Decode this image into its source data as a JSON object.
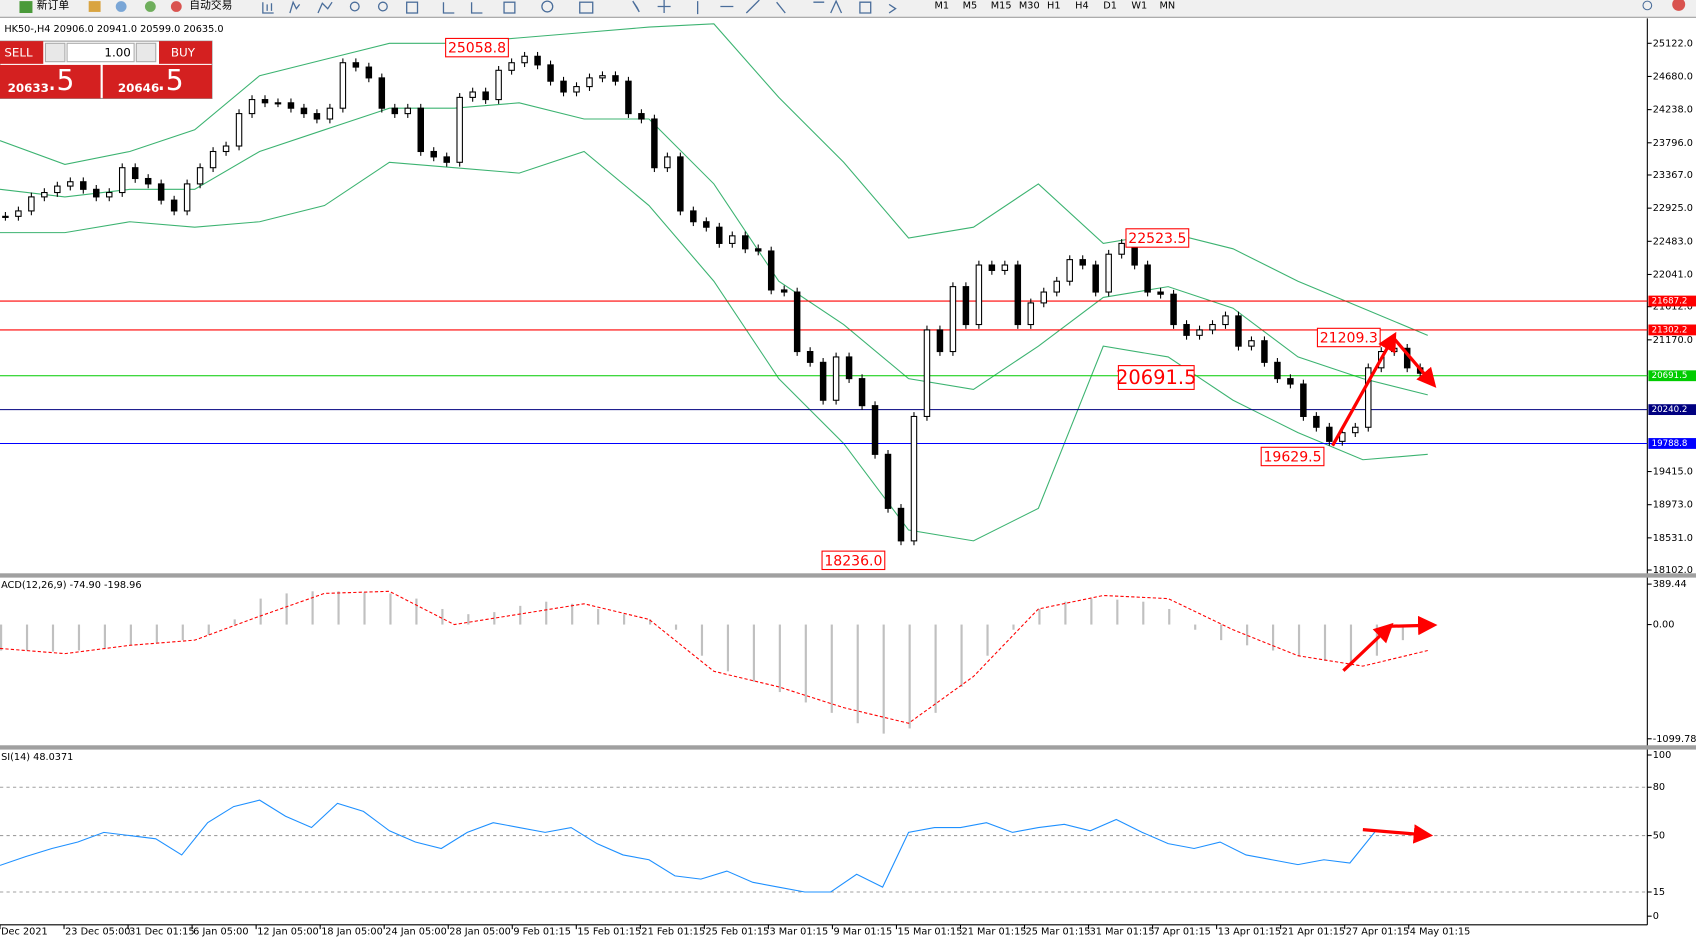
{
  "toolbar": {
    "new_order": "新订单",
    "auto_trading": "自动交易",
    "timeframes": [
      "M1",
      "M5",
      "M15",
      "M30",
      "H1",
      "H4",
      "D1",
      "W1",
      "MN"
    ]
  },
  "trade_panel": {
    "sell": "SELL",
    "buy": "BUY",
    "volume": "1.00",
    "bid_main": "20633",
    "bid_frac": ".5",
    "ask_main": "20646",
    "ask_frac": ".5"
  },
  "chart_data": [
    {
      "type": "candlestick",
      "title": "HK50-,H4  20906.0 20941.0 20599.0 20635.0",
      "color": "#000000",
      "values": [
        22816,
        22888,
        23075,
        23133,
        23219,
        23277,
        23176,
        23075,
        23133,
        23464,
        23320,
        23248,
        23032,
        22888,
        23248,
        23464,
        23680,
        23753,
        24185,
        24372,
        24329,
        24329,
        24257,
        24185,
        24113,
        24257,
        24863,
        24805,
        24661,
        24257,
        24185,
        24257,
        23680,
        23608,
        23536,
        24401,
        24473,
        24372,
        24762,
        24863,
        24949,
        24834,
        24617,
        24473,
        24545,
        24661,
        24690,
        24617,
        24185,
        24113,
        23464,
        23608,
        22888,
        22744,
        22671,
        22455,
        22556,
        22383,
        22354,
        21835,
        21807,
        21014,
        20870,
        20365,
        20942,
        20653,
        20293,
        19644,
        18924,
        18491,
        20149,
        21302,
        21014,
        21879,
        21374,
        22167,
        22095,
        22167,
        21374,
        21662,
        21807,
        21951,
        22239,
        22167,
        21807,
        22311,
        22455,
        22167,
        21807,
        21778,
        21374,
        21230,
        21302,
        21374,
        21489,
        21086,
        21158,
        20870,
        20653,
        20581,
        20149,
        20005,
        19817,
        19933,
        20005,
        20797,
        21014,
        21057,
        20797,
        20725
      ],
      "bands": [
        {
          "color": "#3cb371",
          "values": [
            23825,
            23508,
            23680,
            23969,
            24690,
            24906,
            25122,
            25122,
            25194,
            25266,
            25338,
            25381,
            24401,
            23536,
            22527,
            22671,
            23248,
            22455,
            22599,
            22383,
            21951,
            21591,
            21230
          ]
        },
        {
          "color": "#3cb371",
          "values": [
            23176,
            23075,
            23176,
            23176,
            23680,
            23969,
            24257,
            24257,
            24329,
            24113,
            24113,
            23248,
            21951,
            21374,
            20653,
            20509,
            21086,
            21735,
            21879,
            21591,
            20942,
            20653,
            20437
          ]
        },
        {
          "color": "#3cb371",
          "values": [
            22599,
            22599,
            22744,
            22671,
            22744,
            22960,
            23536,
            23464,
            23392,
            23680,
            22960,
            21951,
            20653,
            19789,
            18635,
            18491,
            18924,
            21086,
            20942,
            20365,
            19933,
            19572,
            19644
          ]
        }
      ],
      "ylim": [
        18102,
        25122
      ],
      "yticks": [
        {
          "value": 25122,
          "label": "25122.0"
        },
        {
          "value": 24680,
          "label": "24680.0"
        },
        {
          "value": 24238,
          "label": "24238.0"
        },
        {
          "value": 23796,
          "label": "23796.0"
        },
        {
          "value": 23367,
          "label": "23367.0"
        },
        {
          "value": 22925,
          "label": "22925.0"
        },
        {
          "value": 22483,
          "label": "22483.0"
        },
        {
          "value": 22041,
          "label": "22041.0"
        },
        {
          "value": 21612,
          "label": "21612.0"
        },
        {
          "value": 21170,
          "label": "21170.0"
        },
        {
          "value": 19415,
          "label": "19415.0"
        },
        {
          "value": 18973,
          "label": "18973.0"
        },
        {
          "value": 18531,
          "label": "18531.0"
        },
        {
          "value": 18102,
          "label": "18102.0"
        }
      ],
      "levels": [
        {
          "value": 21687.2,
          "color": "#ff0000"
        },
        {
          "value": 21302.2,
          "color": "#ff0000"
        },
        {
          "value": 20691.5,
          "color": "#00cc00"
        },
        {
          "value": 20240.2,
          "color": "#000080"
        },
        {
          "value": 19788.8,
          "color": "#0000ff"
        }
      ],
      "annotations": [
        25058.8,
        22523.5,
        21209.3,
        20691.5,
        19629.5,
        {
          "value": 18236,
          "label": "18236.0"
        }
      ],
      "time_labels": [
        "Dec 2021",
        "23 Dec 05:00",
        "31 Dec 01:15",
        "6 Jan 05:00",
        "12 Jan 05:00",
        "18 Jan 05:00",
        "24 Jan 05:00",
        "28 Jan 05:00",
        "9 Feb 01:15",
        "15 Feb 01:15",
        "21 Feb 01:15",
        "25 Feb 01:15",
        "3 Mar 01:15",
        "9 Mar 01:15",
        "15 Mar 01:15",
        "21 Mar 01:15",
        "25 Mar 01:15",
        "31 Mar 01:15",
        "7 Apr 01:15",
        "13 Apr 01:15",
        "21 Apr 01:15",
        "27 Apr 01:15",
        "4 May 01:15"
      ]
    },
    {
      "type": "macd",
      "title": "ACD(12,26,9) -74.90 -198.96",
      "histogram": {
        "color": "#c0c0c0",
        "values": [
          -250,
          -250,
          -260,
          -250,
          -230,
          -200,
          -180,
          -150,
          -100,
          50,
          250,
          300,
          320,
          320,
          310,
          300,
          250,
          150,
          100,
          120,
          180,
          220,
          200,
          150,
          100,
          50,
          -50,
          -300,
          -450,
          -550,
          -650,
          -750,
          -850,
          -950,
          -1050,
          -1000,
          -850,
          -600,
          -300,
          -50,
          150,
          220,
          250,
          240,
          220,
          150,
          -50,
          -150,
          -200,
          -250,
          -300,
          -350,
          -400,
          -300,
          -150
        ]
      },
      "signal": {
        "color": "#ff0000",
        "values": [
          -230,
          -280,
          -200,
          -150,
          80,
          300,
          320,
          0,
          100,
          200,
          50,
          -450,
          -600,
          -800,
          -950,
          -500,
          150,
          280,
          250,
          -50,
          -300,
          -400,
          -250
        ]
      },
      "ylim": [
        -1099.78,
        389.44
      ],
      "yticks": [
        389.44,
        {
          "value": 0,
          "label": "0.00"
        },
        -1099.78
      ]
    },
    {
      "type": "line",
      "title": "SI(14) 48.0371",
      "color": "#1e90ff",
      "values": [
        31.5,
        37,
        42,
        46,
        52,
        50,
        48,
        38,
        58,
        68,
        72,
        62,
        55,
        70,
        65,
        53,
        46,
        42,
        52,
        58,
        55,
        52,
        55,
        45,
        38,
        35,
        25,
        23,
        28,
        21,
        18,
        15,
        15,
        26,
        18,
        52,
        55,
        55,
        58,
        52,
        55,
        57,
        53,
        60,
        52,
        45,
        42,
        46,
        38,
        35,
        32,
        35,
        33,
        53,
        52
      ],
      "ylim": [
        0,
        100
      ],
      "yticks": [
        0,
        15,
        50,
        80,
        100
      ]
    }
  ]
}
